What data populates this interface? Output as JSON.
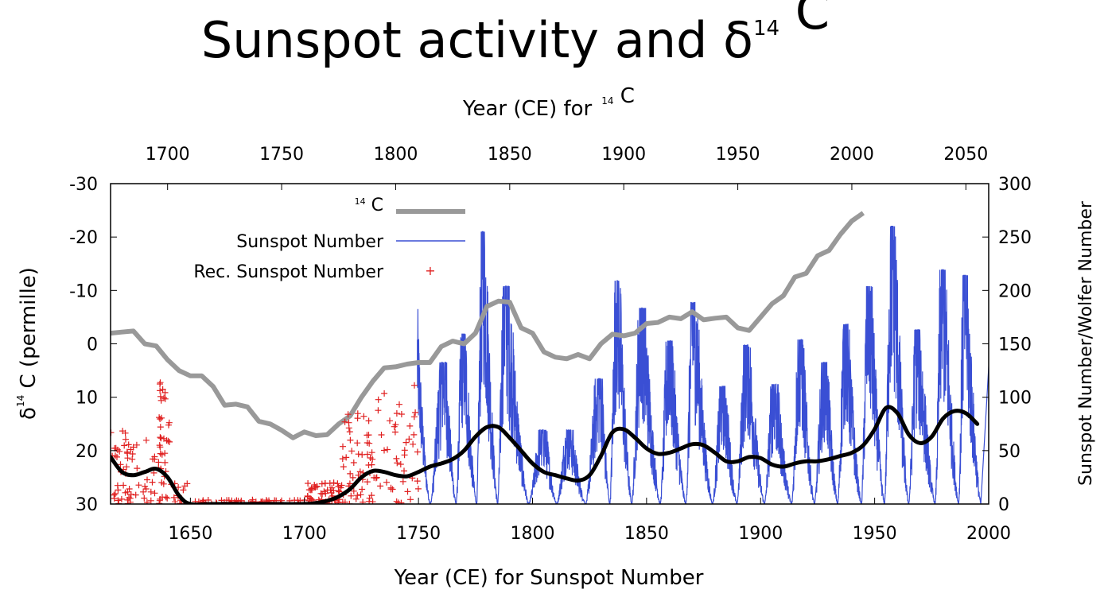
{
  "chart_data": {
    "type": "line",
    "title": "Sunspot activity and δ¹⁴ C",
    "title_parts": {
      "main": "Sunspot activity and δ",
      "sup": "14",
      "tail": " C"
    },
    "x_bottom": {
      "label": "Year (CE) for Sunspot Number",
      "range": [
        1615,
        2000
      ],
      "ticks": [
        "1650",
        "1700",
        "1750",
        "1800",
        "1850",
        "1900",
        "1950",
        "2000"
      ]
    },
    "x_top": {
      "label_main": "Year (CE) for",
      "label_sup": "14",
      "label_tail": " C",
      "range": [
        1675,
        2060
      ],
      "ticks": [
        "1700",
        "1750",
        "1800",
        "1850",
        "1900",
        "1950",
        "2000",
        "2050"
      ]
    },
    "y_left": {
      "label_pre": "δ",
      "label_sup": "14",
      "label_tail": " C (permille)",
      "range": [
        30,
        -30
      ],
      "inverted": true,
      "ticks": [
        "-30",
        "-20",
        "-10",
        "0",
        "10",
        "20",
        "30"
      ]
    },
    "y_right": {
      "label": "Sunspot Number/Wolfer Number",
      "range": [
        0,
        300
      ],
      "ticks": [
        "0",
        "50",
        "100",
        "150",
        "200",
        "250",
        "300"
      ]
    },
    "grid": false,
    "legend_position": "top-left",
    "legend": {
      "c14": {
        "sup": "14",
        "text": " C"
      },
      "sunspot": "Sunspot Number",
      "rec": "Rec. Sunspot Number"
    },
    "colors": {
      "c14": "#999999",
      "sunspot": "#3a4fd4",
      "rec": "#e02020",
      "smooth": "#000000"
    },
    "series": [
      {
        "name": "14 C",
        "axis": "top-left",
        "x": [
          1675,
          1680,
          1685,
          1690,
          1695,
          1700,
          1705,
          1710,
          1715,
          1720,
          1725,
          1730,
          1735,
          1740,
          1745,
          1750,
          1755,
          1760,
          1765,
          1770,
          1775,
          1780,
          1785,
          1790,
          1795,
          1800,
          1805,
          1810,
          1815,
          1820,
          1825,
          1830,
          1835,
          1840,
          1845,
          1850,
          1855,
          1860,
          1865,
          1870,
          1875,
          1880,
          1885,
          1890,
          1895,
          1900,
          1905,
          1910,
          1915,
          1920,
          1925,
          1930,
          1935,
          1940,
          1945,
          1950,
          1955,
          1960,
          1965,
          1970,
          1975,
          1980,
          1985,
          1990,
          1995,
          2000,
          2005
        ],
        "y": [
          -2,
          -2.2,
          -2.4,
          0,
          0.4,
          3,
          5,
          6,
          6,
          8,
          11.5,
          11.3,
          11.8,
          14.5,
          15,
          16.2,
          17.6,
          16.5,
          17.2,
          17,
          15,
          13.5,
          10,
          7,
          4.5,
          4.3,
          3.8,
          3.5,
          3.5,
          0.5,
          -0.5,
          0,
          -2,
          -7,
          -8,
          -7.8,
          -3,
          -2,
          1.5,
          2.5,
          2.8,
          2,
          2.8,
          0,
          -1.8,
          -1.5,
          -2,
          -3.8,
          -4,
          -5,
          -4.7,
          -6,
          -4.5,
          -4.8,
          -5,
          -3,
          -2.5,
          -5,
          -7.5,
          -9,
          -12.5,
          -13.2,
          -16.5,
          -17.5,
          -20.5,
          -23,
          -24.5
        ]
      },
      {
        "name": "Sunspot Number",
        "axis": "bottom-right",
        "cycle_minima": [
          1755.2,
          1766.5,
          1775.5,
          1784.7,
          1798.3,
          1810.6,
          1823.3,
          1833.9,
          1843.5,
          1856.0,
          1867.2,
          1878.9,
          1889.6,
          1901.7,
          1913.6,
          1923.6,
          1933.8,
          1944.2,
          1954.3,
          1964.9,
          1976.5,
          1986.8,
          1996.6
        ],
        "cycle_maxima_x": [
          1761.5,
          1769.7,
          1778.4,
          1788.1,
          1805.2,
          1816.4,
          1829.9,
          1837.2,
          1848.1,
          1860.1,
          1870.6,
          1883.9,
          1894.1,
          1906.2,
          1917.6,
          1928.4,
          1937.4,
          1947.5,
          1957.9,
          1968.9,
          1979.9,
          1989.6
        ],
        "cycle_maxima": [
          130,
          156,
          250,
          200,
          68,
          68,
          115,
          205,
          180,
          150,
          185,
          108,
          146,
          110,
          151,
          130,
          165,
          200,
          255,
          160,
          215,
          210
        ],
        "first_value": [
          1749.5,
          135
        ],
        "last_value": [
          2000.3,
          140
        ]
      },
      {
        "name": "Rec. Sunspot Number",
        "axis": "bottom-right",
        "clusters": [
          {
            "x_range": [
              1615,
              1622
            ],
            "y_range": [
              0,
              75
            ],
            "count": 26
          },
          {
            "x_range": [
              1622,
              1632
            ],
            "y_range": [
              0,
              60
            ],
            "count": 28
          },
          {
            "x_range": [
              1632,
              1640
            ],
            "y_range": [
              0,
              45
            ],
            "count": 22
          },
          {
            "x_range": [
              1636,
              1641
            ],
            "y_range": [
              40,
              118
            ],
            "count": 26
          },
          {
            "x_range": [
              1641,
              1652
            ],
            "y_range": [
              0,
              20
            ],
            "count": 14
          },
          {
            "x_range": [
              1652,
              1700
            ],
            "y_range": [
              0,
              4
            ],
            "count": 55
          },
          {
            "x_range": [
              1700,
              1716
            ],
            "y_range": [
              0,
              20
            ],
            "count": 60
          },
          {
            "x_range": [
              1716,
              1730
            ],
            "y_range": [
              0,
              85
            ],
            "count": 55
          },
          {
            "x_range": [
              1730,
              1750
            ],
            "y_range": [
              0,
              112
            ],
            "count": 45
          }
        ]
      },
      {
        "name": "Smoothed Sunspot Number",
        "axis": "bottom-right",
        "x": [
          1615,
          1620,
          1625,
          1630,
          1635,
          1640,
          1645,
          1650,
          1660,
          1680,
          1700,
          1705,
          1710,
          1715,
          1720,
          1725,
          1730,
          1735,
          1740,
          1745,
          1750,
          1755,
          1760,
          1765,
          1770,
          1775,
          1780,
          1785,
          1790,
          1795,
          1800,
          1805,
          1810,
          1815,
          1820,
          1825,
          1830,
          1835,
          1840,
          1845,
          1850,
          1855,
          1860,
          1865,
          1870,
          1875,
          1880,
          1885,
          1890,
          1895,
          1900,
          1905,
          1910,
          1915,
          1920,
          1925,
          1930,
          1935,
          1940,
          1945,
          1950,
          1955,
          1960,
          1965,
          1970,
          1975,
          1980,
          1985,
          1990,
          1995
        ],
        "y": [
          44,
          30,
          27,
          30,
          33,
          25,
          8,
          0,
          0,
          0,
          0,
          1,
          3,
          7,
          14,
          25,
          31,
          30,
          27,
          26,
          30,
          35,
          38,
          42,
          50,
          63,
          72,
          72,
          62,
          50,
          38,
          30,
          27,
          24,
          22,
          27,
          45,
          67,
          70,
          62,
          52,
          47,
          48,
          52,
          56,
          55,
          48,
          40,
          40,
          44,
          43,
          37,
          35,
          38,
          40,
          40,
          42,
          45,
          48,
          55,
          70,
          90,
          85,
          65,
          57,
          63,
          80,
          87,
          85,
          75
        ]
      }
    ]
  }
}
